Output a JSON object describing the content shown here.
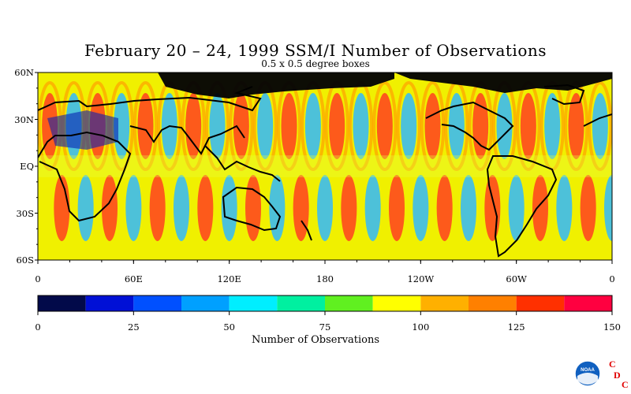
{
  "title": "February 20 – 24, 1999 SSM/I Number of Observations",
  "subtitle": "0.5 x 0.5 degree boxes",
  "map": {
    "lat_labels": [
      "60N",
      "30N",
      "EQ",
      "30S",
      "60S"
    ],
    "lat_values": [
      60,
      30,
      0,
      -30,
      -60
    ],
    "lon_labels": [
      "0",
      "60E",
      "120E",
      "180",
      "120W",
      "60W",
      "0"
    ],
    "lon_values": [
      0,
      60,
      120,
      180,
      240,
      300,
      360
    ],
    "lat_range": [
      -60,
      60
    ],
    "lon_range": [
      0,
      360
    ],
    "land_outline_color": "#000000"
  },
  "colorbar": {
    "label": "Number of Observations",
    "tick_labels": [
      "0",
      "25",
      "50",
      "75",
      "100",
      "125",
      "150"
    ],
    "range": [
      0,
      150
    ],
    "colors": [
      "#020a4a",
      "#0010d6",
      "#0050ff",
      "#00a0ff",
      "#00eeff",
      "#00f0a0",
      "#60f020",
      "#ffff00",
      "#ffb000",
      "#ff8000",
      "#ff3000",
      "#ff0040"
    ]
  },
  "logo": {
    "emblem_text": "NOAA",
    "letters": [
      "C",
      "D",
      "C"
    ],
    "letter_color": "#e00000",
    "emblem_color": "#1060c0"
  }
}
